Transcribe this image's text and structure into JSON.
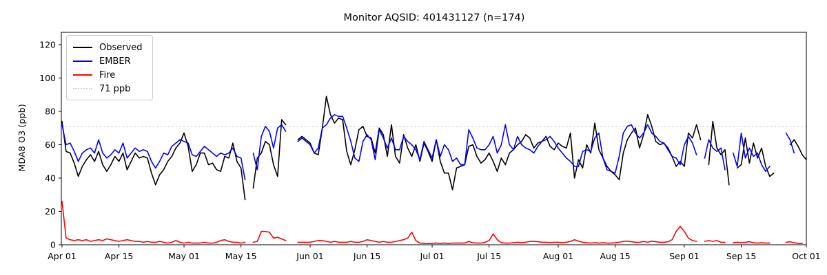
{
  "chart_data": {
    "type": "line",
    "title": "Monitor AQSID: 401431127 (n=174)",
    "xlabel": "",
    "ylabel": "MDA8 O3 (ppb)",
    "grid": false,
    "n_points_label": 174,
    "x_domain": {
      "start_label": "Apr 01",
      "end_label": "Oct 01",
      "days": 183,
      "unit": "day index from Apr 01"
    },
    "ylim": [
      0,
      127
    ],
    "yticks": [
      0,
      20,
      40,
      60,
      80,
      100,
      120
    ],
    "xticks": [
      {
        "label": "Apr 01",
        "day": 0
      },
      {
        "label": "Apr 15",
        "day": 14
      },
      {
        "label": "May 01",
        "day": 30
      },
      {
        "label": "May 15",
        "day": 44
      },
      {
        "label": "Jun 01",
        "day": 61
      },
      {
        "label": "Jun 15",
        "day": 75
      },
      {
        "label": "Jul 01",
        "day": 91
      },
      {
        "label": "Jul 15",
        "day": 105
      },
      {
        "label": "Aug 01",
        "day": 122
      },
      {
        "label": "Aug 15",
        "day": 136
      },
      {
        "label": "Sep 01",
        "day": 153
      },
      {
        "label": "Sep 15",
        "day": 167
      },
      {
        "label": "Oct 01",
        "day": 183
      }
    ],
    "threshold": {
      "label": "71 ppb",
      "value": 71,
      "color": "#d3d3d3",
      "style": "dotted"
    },
    "legend": {
      "position": "upper left",
      "entries": [
        "Observed",
        "EMBER",
        "Fire",
        "71 ppb"
      ]
    },
    "series": [
      {
        "name": "Observed",
        "color": "#000000",
        "style": "solid",
        "values": [
          74,
          56,
          55,
          49,
          41,
          47,
          51,
          54,
          50,
          56,
          48,
          44,
          48,
          53,
          50,
          55,
          45,
          50,
          55,
          52,
          53,
          52,
          43,
          36,
          42,
          45,
          50,
          53,
          58,
          61,
          67,
          59,
          44,
          48,
          55,
          55,
          48,
          49,
          45,
          44,
          53,
          52,
          61,
          50,
          46,
          27,
          null,
          34,
          52,
          55,
          62,
          60,
          48,
          41,
          75,
          72,
          null,
          null,
          63,
          65,
          63,
          61,
          55,
          54,
          70,
          89,
          78,
          73,
          76,
          75,
          56,
          48,
          57,
          69,
          71,
          65,
          64,
          55,
          70,
          66,
          53,
          72,
          53,
          49,
          66,
          58,
          53,
          60,
          50,
          61,
          56,
          50,
          63,
          50,
          43,
          43,
          33,
          46,
          47,
          48,
          59,
          60,
          53,
          49,
          51,
          55,
          50,
          44,
          52,
          48,
          55,
          57,
          60,
          62,
          66,
          64,
          58,
          61,
          62,
          65,
          59,
          57,
          61,
          59,
          58,
          67,
          40,
          51,
          46,
          60,
          55,
          73,
          57,
          52,
          47,
          44,
          42,
          39,
          55,
          63,
          67,
          70,
          58,
          66,
          78,
          71,
          62,
          60,
          61,
          58,
          53,
          47,
          50,
          47,
          67,
          64,
          72,
          63,
          null,
          48,
          74,
          58,
          54,
          57,
          36,
          null,
          46,
          48,
          64,
          49,
          61,
          52,
          58,
          47,
          41,
          43,
          null,
          null,
          null,
          60,
          63,
          59,
          54,
          51
        ]
      },
      {
        "name": "EMBER",
        "color": "#0000ff",
        "style": "solid",
        "values": [
          72,
          60,
          61,
          56,
          50,
          55,
          57,
          58,
          55,
          63,
          55,
          52,
          54,
          57,
          55,
          61,
          52,
          55,
          58,
          56,
          57,
          56,
          50,
          46,
          50,
          55,
          54,
          59,
          61,
          63,
          62,
          61,
          54,
          53,
          56,
          59,
          57,
          55,
          53,
          55,
          54,
          55,
          58,
          53,
          52,
          39,
          null,
          55,
          45,
          65,
          71,
          68,
          58,
          70,
          72,
          68,
          null,
          null,
          62,
          64,
          62,
          60,
          55,
          58,
          70,
          72,
          76,
          78,
          77,
          77,
          70,
          62,
          52,
          50,
          62,
          66,
          63,
          51,
          69,
          64,
          58,
          64,
          57,
          57,
          65,
          62,
          60,
          57,
          51,
          62,
          57,
          52,
          63,
          53,
          60,
          57,
          50,
          52,
          48,
          48,
          69,
          64,
          58,
          57,
          57,
          60,
          65,
          55,
          60,
          72,
          60,
          57,
          65,
          60,
          58,
          57,
          55,
          59,
          62,
          63,
          65,
          62,
          58,
          55,
          52,
          50,
          47,
          47,
          56,
          57,
          56,
          64,
          67,
          52,
          45,
          44,
          43,
          53,
          67,
          71,
          72,
          67,
          64,
          67,
          72,
          67,
          65,
          62,
          61,
          57,
          53,
          52,
          48,
          60,
          65,
          61,
          54,
          null,
          52,
          63,
          58,
          56,
          58,
          45,
          null,
          55,
          47,
          67,
          52,
          58,
          53,
          55,
          48,
          44,
          47,
          null,
          null,
          null,
          67,
          63,
          55,
          null,
          null
        ]
      },
      {
        "name": "Fire",
        "color": "#ff0000",
        "style": "solid",
        "values": [
          26,
          4,
          3,
          2.5,
          3,
          2.5,
          3,
          2,
          2.5,
          3,
          2.5,
          3.5,
          3,
          2.5,
          2,
          2.5,
          3,
          2.5,
          2,
          2,
          1.5,
          2,
          1.5,
          1.5,
          2,
          1.5,
          1,
          1.5,
          2.5,
          1.5,
          1,
          1.5,
          1,
          1,
          1,
          1.5,
          1,
          1,
          1.5,
          2.5,
          3,
          2,
          1.5,
          1.5,
          1,
          1.5,
          null,
          1.5,
          2,
          8,
          8,
          7.5,
          4,
          4.5,
          3.5,
          2.5,
          null,
          null,
          1.5,
          1.5,
          1.5,
          1.5,
          2,
          2.5,
          2.5,
          2,
          1.5,
          2,
          1.5,
          1.5,
          1.5,
          2,
          1.5,
          1.5,
          2,
          3,
          2.5,
          2,
          1.5,
          2,
          1.5,
          1.5,
          2,
          2.5,
          3,
          4,
          7.5,
          2.5,
          1,
          0.8,
          0.8,
          0.8,
          1,
          0.8,
          1,
          0.8,
          1,
          1,
          1,
          1,
          2,
          1.2,
          1,
          1,
          1.5,
          2.5,
          6.5,
          3,
          1.2,
          1,
          1,
          1.2,
          1.5,
          1.2,
          1.5,
          2,
          2,
          1.8,
          1.5,
          1.5,
          1.2,
          1.5,
          1.5,
          1.2,
          1.5,
          2,
          3,
          2.2,
          1.5,
          1.2,
          1,
          1.2,
          1,
          1.2,
          1,
          1,
          1.2,
          1.5,
          2,
          2.2,
          1.8,
          1.5,
          1.5,
          2,
          1.5,
          2.2,
          1.8,
          1.5,
          1.5,
          1.8,
          3,
          8,
          11,
          8,
          4,
          2.5,
          2,
          null,
          2,
          2.5,
          2,
          2.5,
          1.5,
          1.5,
          null,
          1.2,
          1.5,
          1.2,
          1.5,
          1.8,
          1.2,
          1,
          1.2,
          1,
          1,
          null,
          null,
          null,
          1.5,
          1.8,
          1.2,
          0.8,
          0.8
        ]
      }
    ]
  }
}
